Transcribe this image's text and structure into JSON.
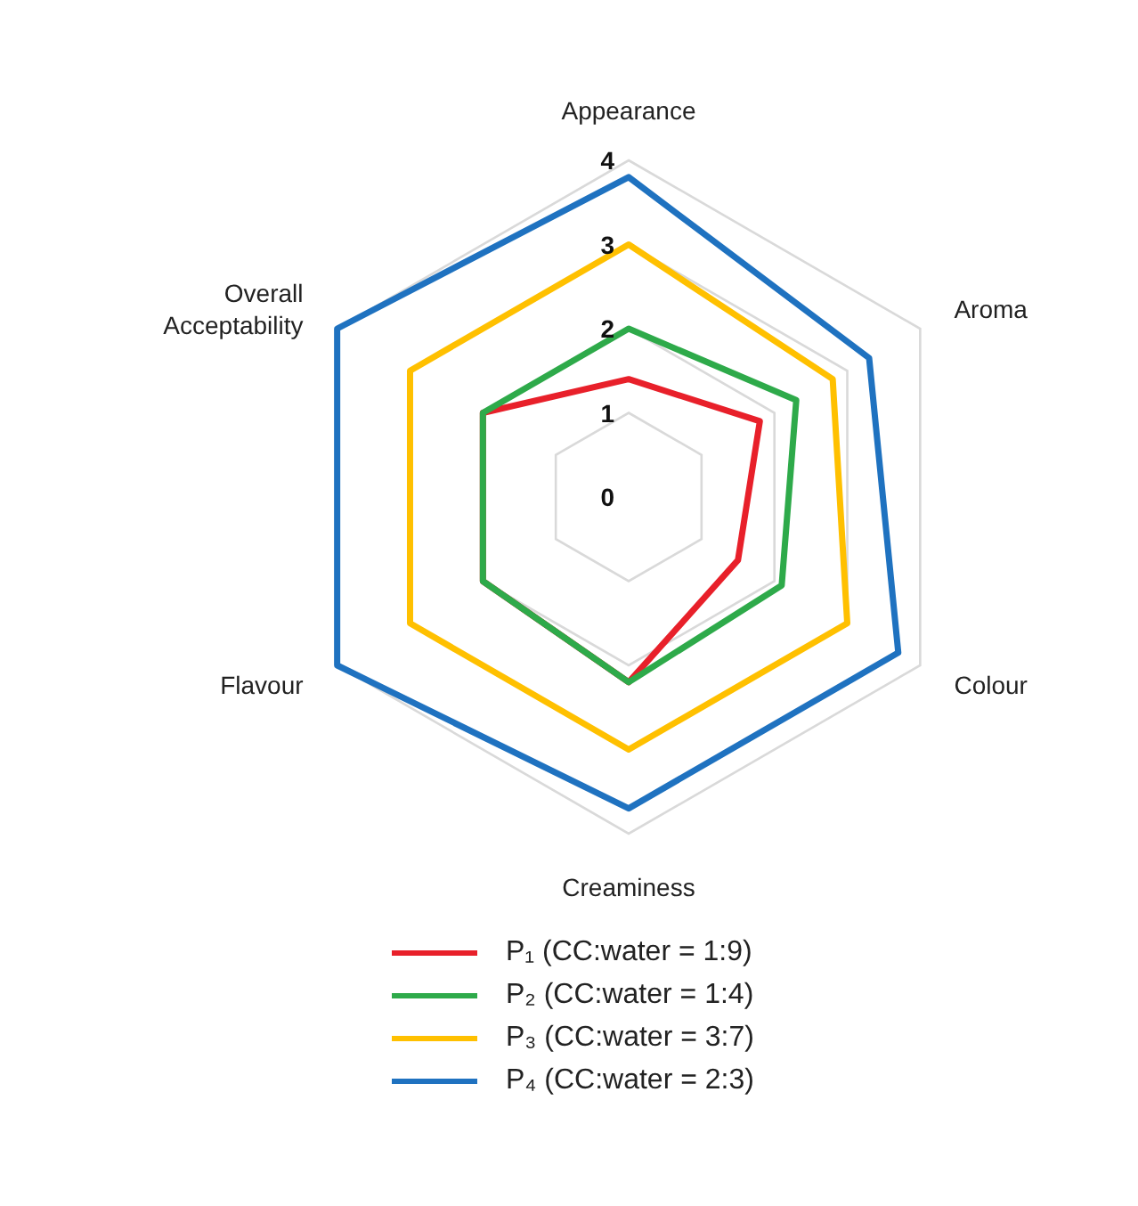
{
  "chart_data": {
    "type": "radar",
    "categories": [
      "Appearance",
      "Aroma",
      "Colour",
      "Creaminess",
      "Flavour",
      "Overall\nAcceptability"
    ],
    "series": [
      {
        "name": "P₁ (CC:water = 1:9)",
        "color": "#e8202a",
        "values": [
          1.4,
          1.8,
          1.5,
          2.2,
          2.0,
          2.0
        ]
      },
      {
        "name": "P₂ (CC:water = 1:4)",
        "color": "#2eaa4a",
        "values": [
          2.0,
          2.3,
          2.1,
          2.2,
          2.0,
          2.0
        ]
      },
      {
        "name": "P₃ (CC:water = 3:7)",
        "color": "#ffc000",
        "values": [
          3.0,
          2.8,
          3.0,
          3.0,
          3.0,
          3.0
        ]
      },
      {
        "name": "P₄ (CC:water = 2:3)",
        "color": "#1f72c0",
        "values": [
          3.8,
          3.3,
          3.7,
          3.7,
          4.0,
          4.0
        ]
      }
    ],
    "ylim": [
      0,
      4
    ],
    "yticks": [
      0,
      1,
      2,
      3,
      4
    ],
    "grid": true,
    "legend": "bottom",
    "marker": "none",
    "line_style": "solid"
  }
}
